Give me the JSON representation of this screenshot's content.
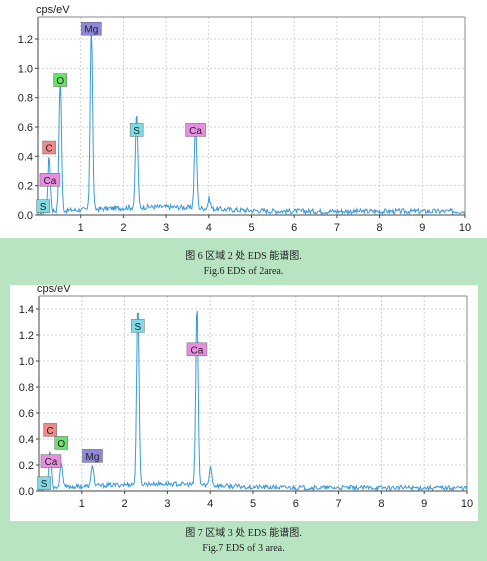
{
  "captions": {
    "fig6_cn": "图 6 区域 2 处 EDS 能谱图.",
    "fig6_en": "Fig.6 EDS of 2area.",
    "fig7_cn": "图 7 区域 3 处 EDS 能谱图.",
    "fig7_en": "Fig.7 EDS of 3 area."
  },
  "chart_data": [
    {
      "type": "line",
      "ylabel": "cps/eV",
      "xlabel": "",
      "xlim": [
        0,
        10
      ],
      "ylim": [
        0,
        1.35
      ],
      "xticks": [
        1,
        2,
        3,
        4,
        5,
        6,
        7,
        8,
        9,
        10
      ],
      "yticks": [
        0.0,
        0.2,
        0.4,
        0.6,
        0.8,
        1.0,
        1.2
      ],
      "grid": true,
      "line_color": "#3a9ad9",
      "peaks": [
        {
          "x": 0.26,
          "y": 0.4
        },
        {
          "x": 0.52,
          "y": 0.95
        },
        {
          "x": 1.25,
          "y": 1.28
        },
        {
          "x": 2.31,
          "y": 0.68
        },
        {
          "x": 3.69,
          "y": 0.62
        },
        {
          "x": 4.01,
          "y": 0.1
        }
      ],
      "labels": [
        {
          "text": "Mg",
          "x": 1.25,
          "y": 1.27,
          "color": "#8f87d8"
        },
        {
          "text": "O",
          "x": 0.52,
          "y": 0.92,
          "color": "#6ce06c"
        },
        {
          "text": "S",
          "x": 2.31,
          "y": 0.58,
          "color": "#7fdce6"
        },
        {
          "text": "Ca",
          "x": 3.69,
          "y": 0.58,
          "color": "#e88ee0"
        },
        {
          "text": "C",
          "x": 0.26,
          "y": 0.46,
          "color": "#f08a8a"
        },
        {
          "text": "Ca",
          "x": 0.28,
          "y": 0.24,
          "color": "#e88ee0"
        },
        {
          "text": "S",
          "x": 0.12,
          "y": 0.06,
          "color": "#7fdce6"
        }
      ]
    },
    {
      "type": "line",
      "ylabel": "cps/eV",
      "xlabel": "",
      "xlim": [
        0,
        10
      ],
      "ylim": [
        0,
        1.5
      ],
      "xticks": [
        1,
        2,
        3,
        4,
        5,
        6,
        7,
        8,
        9,
        10
      ],
      "yticks": [
        0.0,
        0.2,
        0.4,
        0.6,
        0.8,
        1.0,
        1.2,
        1.4
      ],
      "grid": true,
      "line_color": "#3a9ad9",
      "peaks": [
        {
          "x": 0.26,
          "y": 0.32
        },
        {
          "x": 0.52,
          "y": 0.23
        },
        {
          "x": 1.25,
          "y": 0.2
        },
        {
          "x": 2.31,
          "y": 1.43
        },
        {
          "x": 3.69,
          "y": 1.42
        },
        {
          "x": 4.01,
          "y": 0.18
        }
      ],
      "labels": [
        {
          "text": "S",
          "x": 2.31,
          "y": 1.27,
          "color": "#7fdce6"
        },
        {
          "text": "Ca",
          "x": 3.69,
          "y": 1.09,
          "color": "#e88ee0"
        },
        {
          "text": "C",
          "x": 0.26,
          "y": 0.47,
          "color": "#f08a8a"
        },
        {
          "text": "O",
          "x": 0.52,
          "y": 0.37,
          "color": "#6ce06c"
        },
        {
          "text": "Mg",
          "x": 1.25,
          "y": 0.27,
          "color": "#8f87d8"
        },
        {
          "text": "Ca",
          "x": 0.28,
          "y": 0.23,
          "color": "#e88ee0"
        },
        {
          "text": "S",
          "x": 0.12,
          "y": 0.06,
          "color": "#7fdce6"
        }
      ]
    }
  ]
}
